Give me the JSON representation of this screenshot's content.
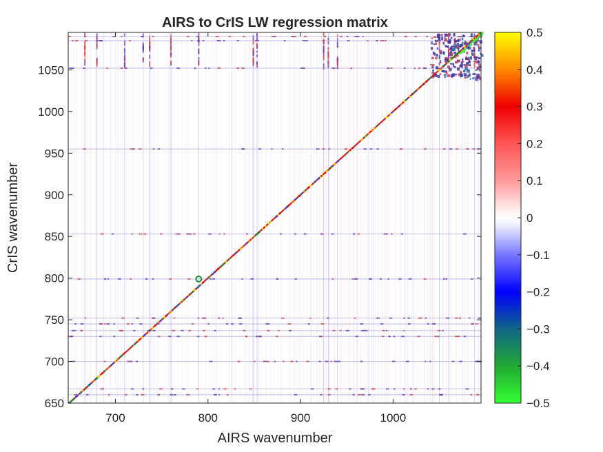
{
  "chart_data": {
    "type": "heatmap",
    "title": "AIRS to CrIS LW regression matrix",
    "xlabel": "AIRS wavenumber",
    "ylabel": "CrIS wavenumber",
    "xlim": [
      649,
      1095
    ],
    "ylim": [
      650,
      1095
    ],
    "x_ticks": [
      700,
      800,
      900,
      1000
    ],
    "y_ticks": [
      650,
      700,
      750,
      800,
      850,
      900,
      950,
      1000,
      1050
    ],
    "colorbar": {
      "range": [
        -0.5,
        0.5
      ],
      "ticks": [
        "0.5",
        "0.4",
        "0.3",
        "0.2",
        "0.1",
        "0",
        "−0.1",
        "−0.2",
        "−0.3",
        "−0.4",
        "−0.5"
      ],
      "tick_values": [
        0.5,
        0.4,
        0.3,
        0.2,
        0.1,
        0,
        -0.1,
        -0.2,
        -0.3,
        -0.4,
        -0.5
      ],
      "colormap": [
        {
          "v": -0.5,
          "color": "#33ff33"
        },
        {
          "v": -0.4,
          "color": "#22a833"
        },
        {
          "v": -0.3,
          "color": "#116688"
        },
        {
          "v": -0.2,
          "color": "#0000ff"
        },
        {
          "v": -0.1,
          "color": "#7777ff"
        },
        {
          "v": -0.02,
          "color": "#eeeeff"
        },
        {
          "v": 0.0,
          "color": "#ffffff"
        },
        {
          "v": 0.02,
          "color": "#ffeeee"
        },
        {
          "v": 0.1,
          "color": "#ff9999"
        },
        {
          "v": 0.2,
          "color": "#ff5555"
        },
        {
          "v": 0.3,
          "color": "#ee0000"
        },
        {
          "v": 0.4,
          "color": "#ff8800"
        },
        {
          "v": 0.5,
          "color": "#ffff00"
        }
      ]
    },
    "features": {
      "diagonal": {
        "x_start": 650,
        "x_end": 1095,
        "y_start": 650,
        "y_end": 1095,
        "peak_value": 0.5
      },
      "horizontal_bands_y": [
        660,
        667,
        700,
        730,
        737,
        745,
        752,
        799,
        853,
        955,
        1052,
        1085,
        1090
      ],
      "vertical_bands_x": [
        667,
        680,
        710,
        730,
        737,
        760,
        790,
        849,
        853,
        925,
        930,
        940,
        1050,
        1060,
        1088
      ],
      "strong_block": {
        "x_min": 1040,
        "x_max": 1095,
        "y_min": 1040,
        "y_max": 1095
      },
      "highlight_x": 790,
      "highlight_y": 799
    }
  }
}
